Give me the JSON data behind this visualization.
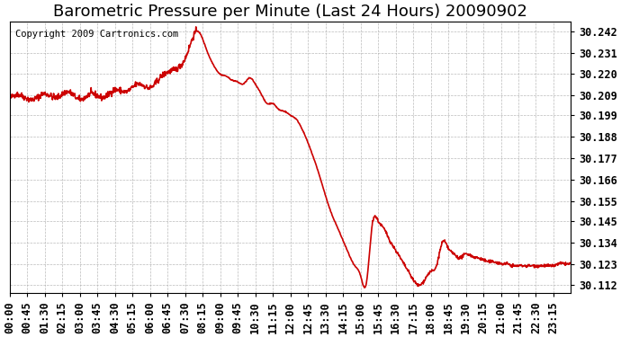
{
  "title": "Barometric Pressure per Minute (Last 24 Hours) 20090902",
  "copyright": "Copyright 2009 Cartronics.com",
  "line_color": "#cc0000",
  "background_color": "#ffffff",
  "plot_background": "#ffffff",
  "grid_color": "#aaaaaa",
  "yticks": [
    30.112,
    30.123,
    30.134,
    30.145,
    30.155,
    30.166,
    30.177,
    30.188,
    30.199,
    30.209,
    30.22,
    30.231,
    30.242
  ],
  "ytick_labels": [
    "30.112",
    "30.123",
    "30.134",
    "30.145",
    "30.155",
    "30.166",
    "30.177",
    "30.188",
    "30.199",
    "30.209",
    "30.220",
    "30.231",
    "30.242"
  ],
  "ylim": [
    30.108,
    30.247
  ],
  "xtick_labels": [
    "00:00",
    "00:45",
    "01:30",
    "02:15",
    "03:00",
    "03:45",
    "04:30",
    "05:15",
    "06:00",
    "06:45",
    "07:30",
    "08:15",
    "09:00",
    "09:45",
    "10:30",
    "11:15",
    "12:00",
    "12:45",
    "13:30",
    "14:15",
    "15:00",
    "15:45",
    "16:30",
    "17:15",
    "18:00",
    "18:45",
    "19:30",
    "20:15",
    "21:00",
    "21:45",
    "22:30",
    "23:15"
  ],
  "title_fontsize": 13,
  "tick_fontsize": 8.5,
  "copyright_fontsize": 7.5,
  "line_width": 1.2,
  "waypoints_t": [
    0,
    30,
    60,
    90,
    120,
    150,
    180,
    210,
    240,
    270,
    300,
    330,
    360,
    390,
    420,
    450,
    465,
    480,
    495,
    510,
    525,
    540,
    555,
    570,
    585,
    600,
    615,
    630,
    645,
    660,
    675,
    690,
    705,
    720,
    735,
    750,
    765,
    780,
    795,
    810,
    825,
    840,
    855,
    870,
    885,
    900,
    915,
    930,
    945,
    960,
    975,
    990,
    1005,
    1020,
    1035,
    1050,
    1065,
    1080,
    1095,
    1110,
    1125,
    1140,
    1155,
    1170,
    1185,
    1200,
    1215,
    1230,
    1245,
    1260,
    1275,
    1290,
    1305,
    1320,
    1335,
    1350,
    1365,
    1380,
    1395,
    1410,
    1425,
    1439
  ],
  "waypoints_v": [
    30.207,
    30.209,
    30.207,
    30.21,
    30.208,
    30.211,
    30.207,
    30.21,
    30.208,
    30.212,
    30.211,
    30.215,
    30.213,
    30.219,
    30.222,
    30.228,
    30.236,
    30.242,
    30.238,
    30.23,
    30.224,
    30.22,
    30.219,
    30.217,
    30.216,
    30.215,
    30.218,
    30.215,
    30.21,
    30.205,
    30.205,
    30.202,
    30.201,
    30.199,
    30.197,
    30.192,
    30.185,
    30.177,
    30.168,
    30.158,
    30.149,
    30.142,
    30.135,
    30.128,
    30.122,
    30.117,
    30.113,
    30.143,
    30.145,
    30.141,
    30.135,
    30.13,
    30.125,
    30.12,
    30.115,
    30.112,
    30.115,
    30.119,
    30.122,
    30.134,
    30.131,
    30.128,
    30.126,
    30.128,
    30.127,
    30.126,
    30.125,
    30.124,
    30.124,
    30.123,
    30.123,
    30.122,
    30.122,
    30.122,
    30.122,
    30.122,
    30.122,
    30.122,
    30.122,
    30.123,
    30.123,
    30.123
  ]
}
